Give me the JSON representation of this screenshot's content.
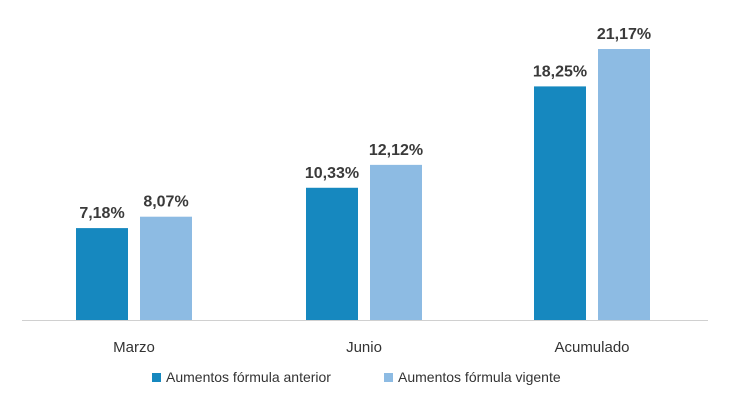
{
  "chart_data": {
    "type": "bar",
    "title": "",
    "xlabel": "",
    "ylabel": "",
    "categories": [
      "Marzo",
      "Junio",
      "Acumulado"
    ],
    "series": [
      {
        "name": "Aumentos fórmula anterior",
        "color": "#1688bf",
        "values": [
          7.18,
          10.33,
          18.25
        ],
        "labels": [
          "7,18%",
          "10,33%",
          "18,25%"
        ]
      },
      {
        "name": "Aumentos fórmula vigente",
        "color": "#8dbbe3",
        "values": [
          8.07,
          12.12,
          21.17
        ],
        "labels": [
          "8,07%",
          "12,12%",
          "21,17%"
        ]
      }
    ],
    "ylim": [
      0,
      22.5
    ],
    "grid": false,
    "legend_position": "bottom-center"
  }
}
